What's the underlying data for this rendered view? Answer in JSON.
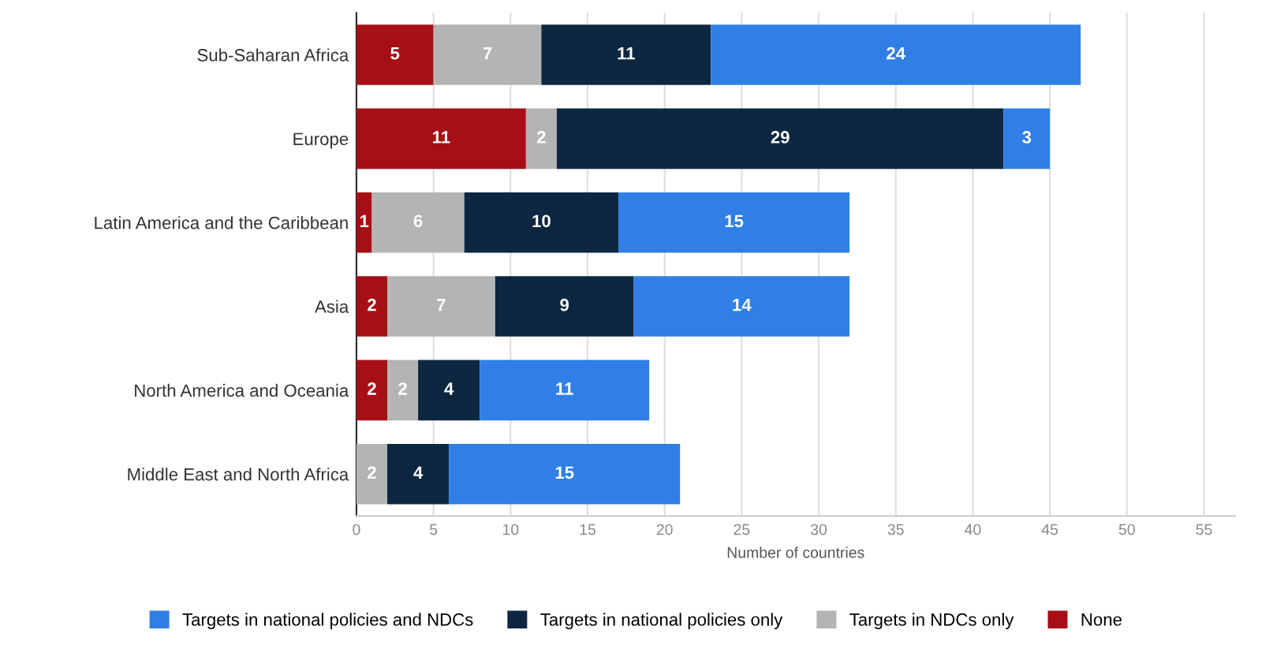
{
  "chart_data": {
    "type": "bar",
    "orientation": "horizontal",
    "stacked": true,
    "xlabel": "Number of countries",
    "categories": [
      "Sub-Saharan Africa",
      "Europe",
      "Latin America and the Caribbean",
      "Asia",
      "North America and Oceania",
      "Middle East and North Africa"
    ],
    "series": [
      {
        "name": "None",
        "color": "#a50f15",
        "values": [
          5,
          11,
          1,
          2,
          2,
          null
        ]
      },
      {
        "name": "Targets in NDCs only",
        "color": "#b4b4b4",
        "values": [
          7,
          2,
          6,
          7,
          2,
          2
        ]
      },
      {
        "name": "Targets in national policies only",
        "color": "#0e2741",
        "values": [
          11,
          29,
          10,
          9,
          4,
          4
        ]
      },
      {
        "name": "Targets in national policies and NDCs",
        "color": "#2f7fe6",
        "values": [
          24,
          3,
          15,
          14,
          11,
          15
        ]
      }
    ],
    "xlim": [
      0,
      57
    ],
    "xticks": [
      0,
      5,
      10,
      15,
      20,
      25,
      30,
      35,
      40,
      45,
      50,
      55
    ],
    "grid": "x",
    "legend": "bottom",
    "data_labels": true
  }
}
